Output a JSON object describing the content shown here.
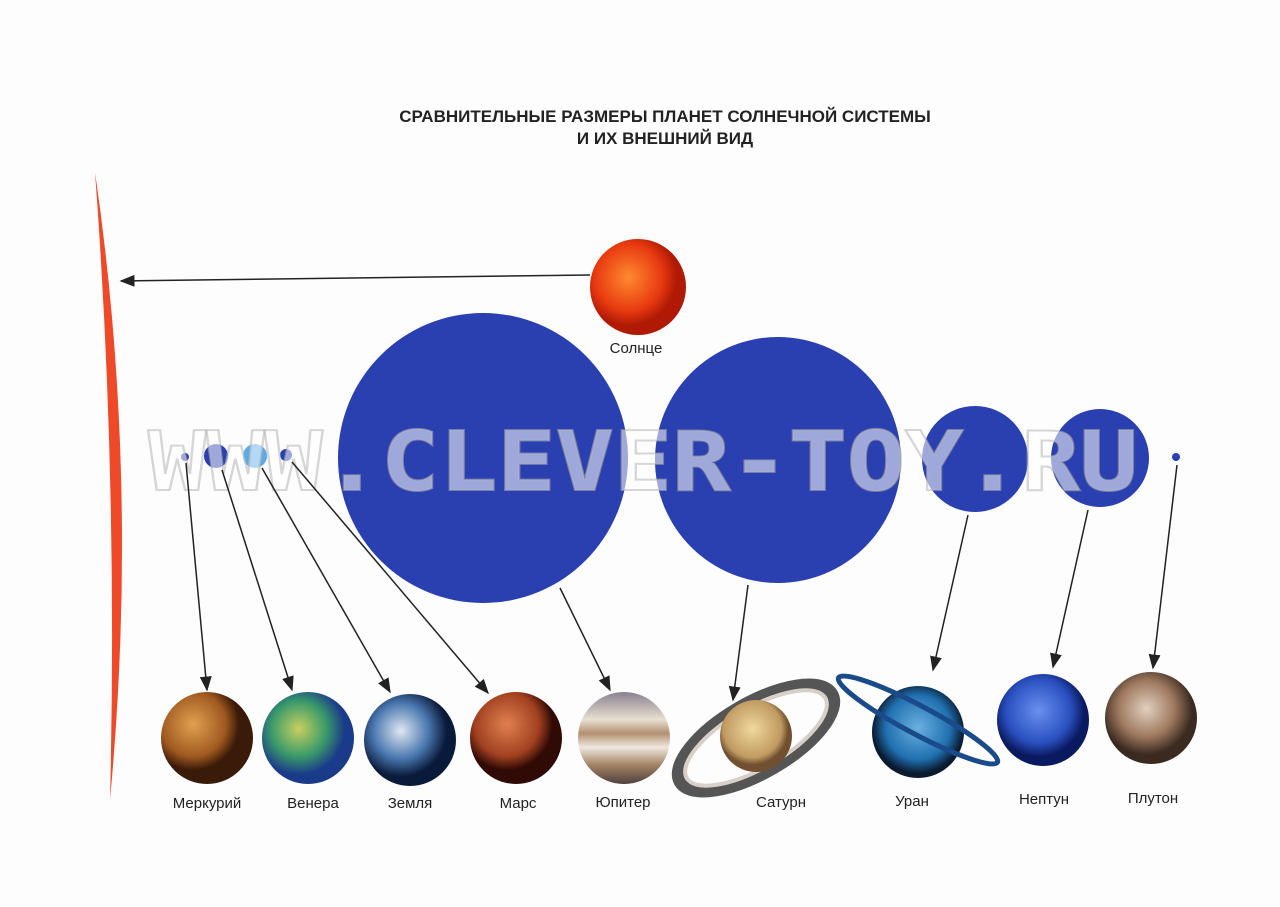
{
  "title": {
    "line1": "СРАВНИТЕЛЬНЫЕ РАЗМЕРЫ ПЛАНЕТ СОЛНЕЧНОЙ СИСТЕМЫ",
    "line2": "И ИХ ВНЕШНИЙ ВИД"
  },
  "sun": {
    "label": "Солнце",
    "color": "#e8401c"
  },
  "planets": [
    {
      "label": "Меркурий"
    },
    {
      "label": "Венера"
    },
    {
      "label": "Земля"
    },
    {
      "label": "Марс"
    },
    {
      "label": "Юпитер"
    },
    {
      "label": "Сатурн"
    },
    {
      "label": "Уран"
    },
    {
      "label": "Нептун"
    },
    {
      "label": "Плутон"
    }
  ],
  "colors": {
    "scale_circle": "#2a3fb0",
    "earth_scale": "#5aaae8",
    "sun_arc": "#ee4a2a"
  },
  "watermark": "WWW.CLEVER-TOY.RU"
}
